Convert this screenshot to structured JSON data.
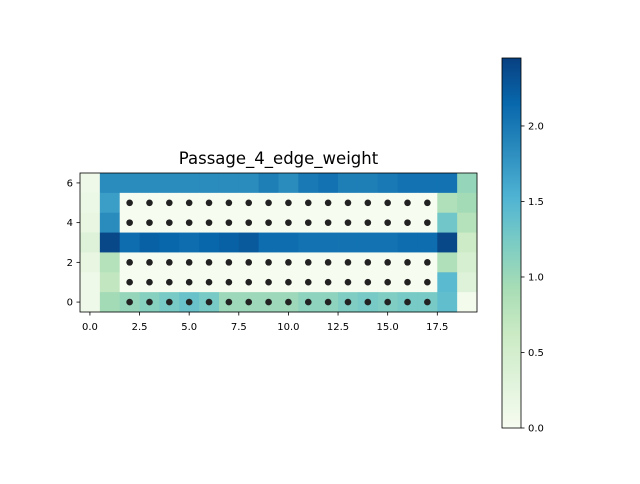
{
  "chart_data": {
    "type": "heatmap",
    "title": "Passage_4_edge_weight",
    "xlabel": "",
    "ylabel": "",
    "xlim": [
      -0.5,
      19.5
    ],
    "ylim": [
      -0.5,
      6.5
    ],
    "xticks": [
      0.0,
      2.5,
      5.0,
      7.5,
      10.0,
      12.5,
      15.0,
      17.5
    ],
    "xtick_labels": [
      "0.0",
      "2.5",
      "5.0",
      "7.5",
      "10.0",
      "12.5",
      "15.0",
      "17.5"
    ],
    "yticks": [
      0,
      2,
      4,
      6
    ],
    "ytick_labels": [
      "0",
      "2",
      "4",
      "6"
    ],
    "colormap": "GnBu",
    "color_range": [
      0.0,
      2.45
    ],
    "colorbar_ticks": [
      0.0,
      0.5,
      1.0,
      1.5,
      2.0
    ],
    "colorbar_tick_labels": [
      "0.0",
      "0.5",
      "1.0",
      "1.5",
      "2.0"
    ],
    "grid": false,
    "grid_values_rows_top_to_bottom": [
      [
        0.1,
        1.85,
        1.85,
        1.85,
        1.85,
        1.85,
        1.85,
        1.85,
        1.85,
        1.95,
        1.85,
        2.0,
        2.05,
        1.95,
        1.95,
        2.0,
        2.05,
        2.05,
        2.05,
        1.05
      ],
      [
        0.15,
        1.7,
        0.0,
        0.0,
        0.0,
        0.0,
        0.0,
        0.0,
        0.0,
        0.0,
        0.0,
        0.0,
        0.0,
        0.0,
        0.0,
        0.0,
        0.0,
        0.0,
        0.85,
        0.95
      ],
      [
        0.2,
        1.85,
        0.0,
        0.0,
        0.0,
        0.0,
        0.0,
        0.0,
        0.0,
        0.0,
        0.0,
        0.0,
        0.0,
        0.0,
        0.0,
        0.0,
        0.0,
        0.0,
        1.3,
        0.8
      ],
      [
        0.35,
        2.4,
        2.1,
        2.2,
        2.15,
        2.1,
        2.15,
        2.2,
        2.25,
        2.1,
        2.1,
        2.05,
        2.05,
        2.05,
        2.05,
        2.05,
        2.1,
        2.1,
        2.4,
        0.6
      ],
      [
        0.2,
        0.8,
        0.0,
        0.0,
        0.0,
        0.0,
        0.0,
        0.0,
        0.0,
        0.0,
        0.0,
        0.0,
        0.0,
        0.0,
        0.0,
        0.0,
        0.0,
        0.0,
        0.85,
        0.45
      ],
      [
        0.1,
        0.7,
        0.0,
        0.0,
        0.0,
        0.0,
        0.0,
        0.0,
        0.0,
        0.0,
        0.0,
        0.0,
        0.0,
        0.0,
        0.0,
        0.0,
        0.0,
        0.0,
        1.45,
        0.35
      ],
      [
        0.1,
        0.95,
        1.05,
        1.15,
        1.25,
        1.35,
        1.25,
        1.0,
        1.0,
        1.0,
        1.0,
        1.1,
        1.1,
        1.2,
        1.25,
        1.2,
        1.25,
        1.25,
        1.4,
        0.05
      ]
    ],
    "marker_rows": [
      0,
      1,
      2,
      4,
      5
    ],
    "marker_cols": [
      2,
      3,
      4,
      5,
      6,
      7,
      8,
      9,
      10,
      11,
      12,
      13,
      14,
      15,
      16,
      17
    ],
    "marker_color": "#222222"
  }
}
